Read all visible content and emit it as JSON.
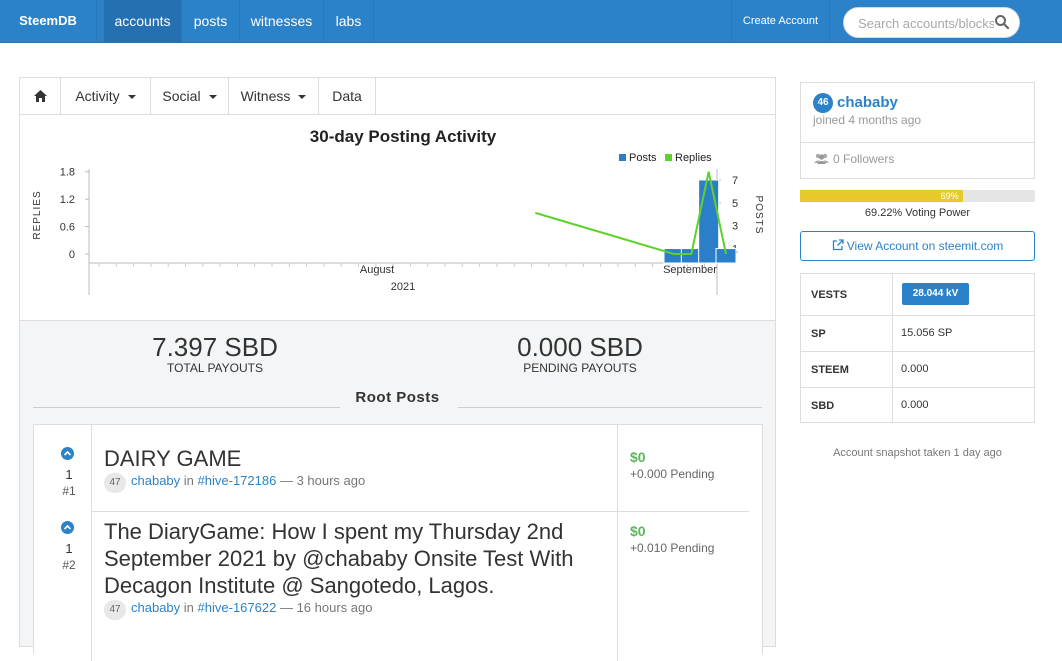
{
  "nav": {
    "brand": "SteemDB",
    "items": [
      {
        "label": "accounts",
        "active": true
      },
      {
        "label": "posts",
        "active": false
      },
      {
        "label": "witnesses",
        "active": false
      },
      {
        "label": "labs",
        "active": false
      }
    ],
    "create_account": "Create Account",
    "search_placeholder": "Search accounts/blocks"
  },
  "tabs": [
    {
      "label": "Activity",
      "dropdown": true
    },
    {
      "label": "Social",
      "dropdown": true
    },
    {
      "label": "Witness",
      "dropdown": true
    },
    {
      "label": "Data",
      "dropdown": false
    }
  ],
  "chart_data": {
    "type": "bar+line",
    "title": "30-day Posting Activity",
    "legend": [
      "Posts",
      "Replies"
    ],
    "legend_position": "top-right",
    "left_axis": {
      "label": "REPLIES",
      "ticks": [
        "0",
        "0.6",
        "1.2",
        "1.8"
      ],
      "range": [
        0,
        2.1
      ]
    },
    "right_axis": {
      "label": "POSTS",
      "ticks": [
        "1",
        "3",
        "5",
        "7"
      ],
      "range": [
        0,
        8.4
      ]
    },
    "x_axis": {
      "labels": [
        "August",
        "September"
      ],
      "year_label": "2021"
    },
    "series": [
      {
        "name": "Posts",
        "kind": "bar",
        "color": "#2a7fc8",
        "points": [
          {
            "date": "2021-08-31",
            "value": 1
          },
          {
            "date": "2021-09-01",
            "value": 1
          },
          {
            "date": "2021-09-02",
            "value": 7
          },
          {
            "date": "2021-09-03",
            "value": 1
          }
        ]
      },
      {
        "name": "Replies",
        "kind": "line",
        "color": "#5ed12b",
        "points": [
          {
            "date": "2021-08-23",
            "value": 0.9
          },
          {
            "date": "2021-08-31",
            "value": 0
          },
          {
            "date": "2021-09-01",
            "value": 0
          },
          {
            "date": "2021-09-02",
            "value": 1.8
          },
          {
            "date": "2021-09-03",
            "value": 0
          }
        ]
      }
    ]
  },
  "payouts": {
    "total": {
      "amount": "7.397 SBD",
      "label": "TOTAL PAYOUTS"
    },
    "pending": {
      "amount": "0.000 SBD",
      "label": "PENDING PAYOUTS"
    }
  },
  "root_posts_heading": "Root Posts",
  "posts": [
    {
      "votes": "1",
      "rank": "#1",
      "title": "DAIRY GAME",
      "rep": "47",
      "author": "chababy",
      "in": "in",
      "community": "#hive-172186",
      "time": "— 3 hours ago",
      "payout": "$0",
      "pending": "+0.000 Pending"
    },
    {
      "votes": "1",
      "rank": "#2",
      "title": "The DiaryGame: How I spent my Thursday 2nd September 2021 by @chababy Onsite Test With Decagon Institute @ Sangotedo, Lagos.",
      "rep": "47",
      "author": "chababy",
      "in": "in",
      "community": "#hive-167622",
      "time": "— 16 hours ago",
      "payout": "$0",
      "pending": "+0.010 Pending"
    }
  ],
  "profile": {
    "reputation": "46",
    "name": "chababy",
    "joined": "joined 4 months ago",
    "followers": "0 Followers"
  },
  "voting_power": {
    "percent": 69.22,
    "bar_label": "69%",
    "text": "69.22% Voting Power",
    "color": "#e6c92a"
  },
  "view_account_label": "View Account on steemit.com",
  "stats": [
    {
      "key": "VESTS",
      "value": "28.044 kV",
      "badge": true
    },
    {
      "key": "SP",
      "value": "15.056 SP",
      "badge": false
    },
    {
      "key": "STEEM",
      "value": "0.000",
      "badge": false
    },
    {
      "key": "SBD",
      "value": "0.000",
      "badge": false
    }
  ],
  "snapshot": "Account snapshot taken 1 day ago"
}
